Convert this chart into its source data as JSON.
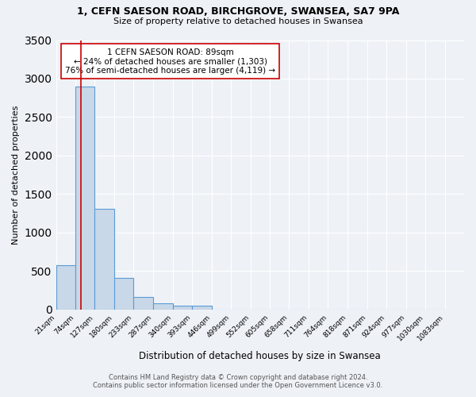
{
  "title1": "1, CEFN SAESON ROAD, BIRCHGROVE, SWANSEA, SA7 9PA",
  "title2": "Size of property relative to detached houses in Swansea",
  "xlabel": "Distribution of detached houses by size in Swansea",
  "ylabel": "Number of detached properties",
  "bar_left_edges": [
    21,
    74,
    127,
    180,
    233,
    287,
    340,
    393,
    446,
    499,
    552,
    605,
    658,
    711,
    764,
    818,
    871,
    924,
    977,
    1030
  ],
  "bar_heights": [
    575,
    2900,
    1305,
    415,
    165,
    80,
    50,
    50,
    0,
    0,
    0,
    0,
    0,
    0,
    0,
    0,
    0,
    0,
    0,
    0
  ],
  "bin_width": 53,
  "bar_color": "#c8d8e8",
  "bar_edge_color": "#5b9bd5",
  "tick_labels": [
    "21sqm",
    "74sqm",
    "127sqm",
    "180sqm",
    "233sqm",
    "287sqm",
    "340sqm",
    "393sqm",
    "446sqm",
    "499sqm",
    "552sqm",
    "605sqm",
    "658sqm",
    "711sqm",
    "764sqm",
    "818sqm",
    "871sqm",
    "924sqm",
    "977sqm",
    "1030sqm",
    "1083sqm"
  ],
  "ylim": [
    0,
    3500
  ],
  "yticks": [
    0,
    500,
    1000,
    1500,
    2000,
    2500,
    3000,
    3500
  ],
  "property_line_x": 89,
  "property_line_color": "#cc0000",
  "annotation_title": "1 CEFN SAESON ROAD: 89sqm",
  "annotation_line1": "← 24% of detached houses are smaller (1,303)",
  "annotation_line2": "76% of semi-detached houses are larger (4,119) →",
  "footer1": "Contains HM Land Registry data © Crown copyright and database right 2024.",
  "footer2": "Contains public sector information licensed under the Open Government Licence v3.0.",
  "bg_color": "#eef2f7",
  "plot_bg_color": "#eef2f7"
}
